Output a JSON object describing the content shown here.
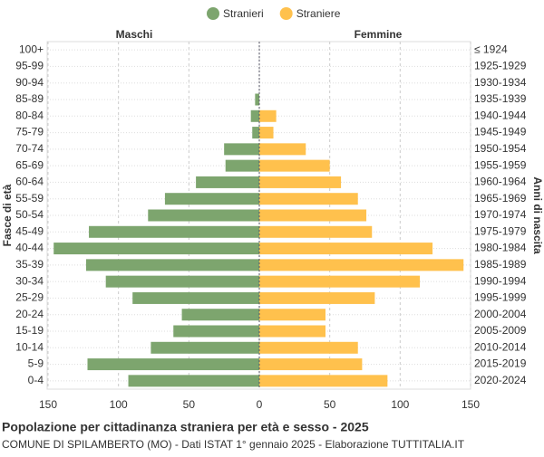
{
  "chart_data": {
    "type": "pyramid",
    "title": "Popolazione per cittadinanza straniera per età e sesso - 2025",
    "subtitle": "COMUNE DI SPILAMBERTO (MO) - Dati ISTAT 1° gennaio 2025 - Elaborazione TUTTITALIA.IT",
    "left_label": "Maschi",
    "right_label": "Femmine",
    "y_label": "Fasce di età",
    "y2_label": "Anni di nascita",
    "categories": [
      "100+",
      "95-99",
      "90-94",
      "85-89",
      "80-84",
      "75-79",
      "70-74",
      "65-69",
      "60-64",
      "55-59",
      "50-54",
      "45-49",
      "40-44",
      "35-39",
      "30-34",
      "25-29",
      "20-24",
      "15-19",
      "10-14",
      "5-9",
      "0-4"
    ],
    "birth_years": [
      "≤ 1924",
      "1925-1929",
      "1930-1934",
      "1935-1939",
      "1940-1944",
      "1945-1949",
      "1950-1954",
      "1955-1959",
      "1960-1964",
      "1965-1969",
      "1970-1974",
      "1975-1979",
      "1980-1984",
      "1985-1989",
      "1990-1994",
      "1995-1999",
      "2000-2004",
      "2005-2009",
      "2010-2014",
      "2015-2019",
      "2020-2024"
    ],
    "series": [
      {
        "name": "Stranieri",
        "color": "#7da56e",
        "values": [
          0,
          0,
          0,
          3,
          6,
          5,
          25,
          24,
          45,
          67,
          79,
          121,
          146,
          123,
          109,
          90,
          55,
          61,
          77,
          122,
          93
        ]
      },
      {
        "name": "Straniere",
        "color": "#ffc14d",
        "values": [
          0,
          0,
          0,
          0,
          12,
          10,
          33,
          50,
          58,
          70,
          76,
          80,
          123,
          145,
          114,
          82,
          47,
          47,
          70,
          73,
          91
        ]
      }
    ],
    "xlim": [
      0,
      150
    ],
    "xticks": [
      0,
      50,
      100,
      150
    ],
    "grid": true
  }
}
